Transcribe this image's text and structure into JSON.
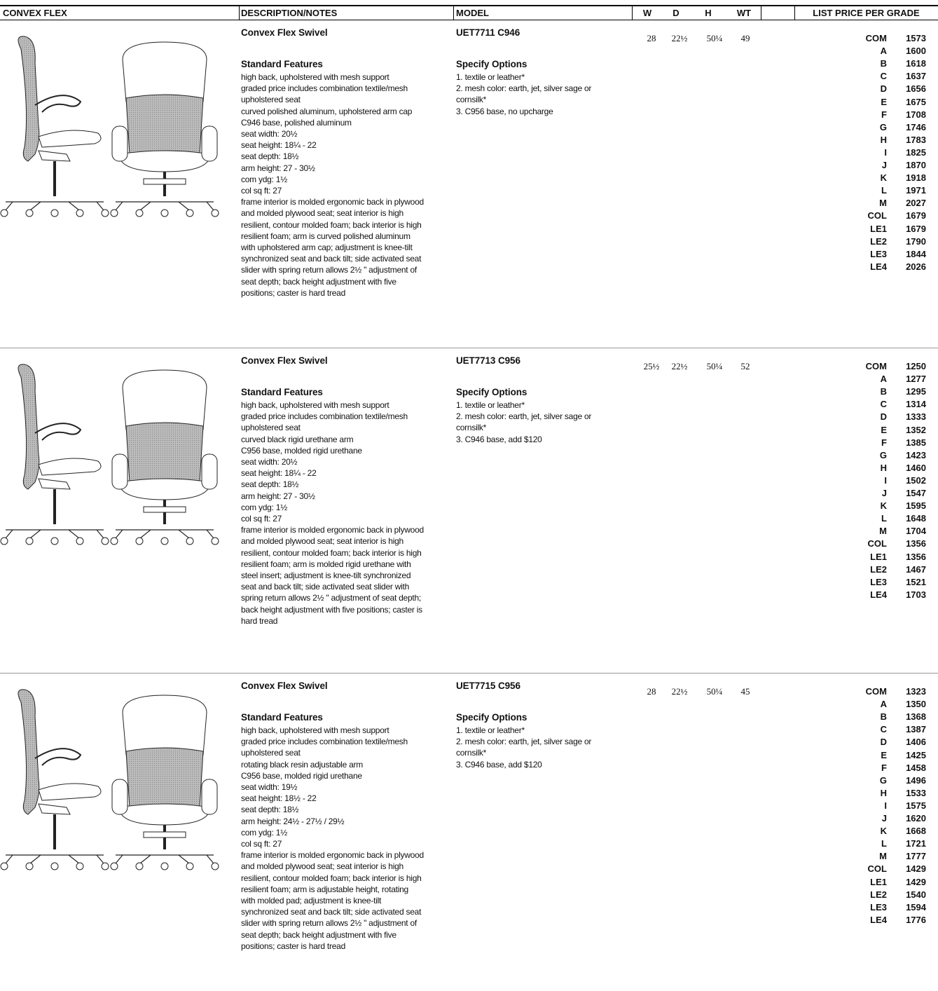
{
  "header": {
    "columns": [
      "CONVEX FLEX",
      "DESCRIPTION/NOTES",
      "MODEL",
      "W",
      "D",
      "H",
      "WT",
      "LIST PRICE PER GRADE"
    ]
  },
  "grades": [
    "COM",
    "A",
    "B",
    "C",
    "D",
    "E",
    "F",
    "G",
    "H",
    "I",
    "J",
    "K",
    "L",
    "M",
    "COL",
    "LE1",
    "LE2",
    "LE3",
    "LE4"
  ],
  "products": [
    {
      "name": "Convex Flex Swivel",
      "features_title": "Standard Features",
      "features": [
        "high back, upholstered with mesh support",
        "graded price includes combination textile/mesh",
        "upholstered seat",
        "curved polished aluminum, upholstered arm cap",
        "C946 base, polished aluminum",
        "seat width: 20½",
        "seat height: 18¼  - 22",
        "seat depth: 18½",
        "arm height: 27 - 30½",
        "com ydg: 1½",
        "col sq ft: 27",
        "frame interior is molded ergonomic back in plywood",
        "and molded plywood seat; seat interior is high",
        "resilient, contour molded foam; back interior is high",
        "resilient foam; arm is curved polished aluminum",
        "with upholstered arm cap; adjustment is knee-tilt",
        "synchronized seat and back tilt; side activated seat",
        "slider with spring return allows 2½ \" adjustment of",
        "seat depth; back height adjustment with five",
        "positions; caster is hard tread"
      ],
      "model": "UET7711 C946",
      "options_title": "Specify Options",
      "options": [
        "1. textile or leather*",
        "2. mesh color: earth, jet, silver sage or",
        "cornsilk*",
        "3. C956 base, no upcharge"
      ],
      "w": "28",
      "d": "22½",
      "h": "50¼",
      "wt": "49",
      "prices": [
        1573,
        1600,
        1618,
        1637,
        1656,
        1675,
        1708,
        1746,
        1783,
        1825,
        1870,
        1918,
        1971,
        2027,
        1679,
        1679,
        1790,
        1844,
        2026
      ]
    },
    {
      "name": "Convex Flex Swivel",
      "features_title": "Standard Features",
      "features": [
        "high back, upholstered with mesh support",
        "graded price includes combination textile/mesh",
        "upholstered seat",
        "curved black rigid urethane arm",
        "C956 base, molded rigid urethane",
        "seat width: 20½",
        "seat height: 18¼  - 22",
        "seat depth: 18½",
        "arm height: 27 - 30½",
        "com ydg: 1½",
        "col sq ft: 27",
        "frame interior is molded ergonomic back in plywood",
        "and molded plywood seat; seat interior is high",
        "resilient, contour molded foam; back interior is high",
        "resilient foam; arm is molded rigid urethane with",
        "steel insert; adjustment is knee-tilt synchronized",
        "seat and back tilt; side activated seat slider with",
        "spring return allows 2½ \" adjustment of seat depth;",
        "back height adjustment with five positions; caster is",
        "hard tread"
      ],
      "model": "UET7713 C956",
      "options_title": "Specify Options",
      "options": [
        "1. textile or leather*",
        "2. mesh color: earth, jet, silver sage or",
        "cornsilk*",
        "3. C946 base, add $120"
      ],
      "w": "25½",
      "d": "22½",
      "h": "50¼",
      "wt": "52",
      "prices": [
        1250,
        1277,
        1295,
        1314,
        1333,
        1352,
        1385,
        1423,
        1460,
        1502,
        1547,
        1595,
        1648,
        1704,
        1356,
        1356,
        1467,
        1521,
        1703
      ]
    },
    {
      "name": "Convex Flex Swivel",
      "features_title": "Standard Features",
      "features": [
        "high back, upholstered with mesh support",
        "graded price includes combination textile/mesh",
        "upholstered seat",
        "rotating black resin adjustable arm",
        "C956 base, molded rigid urethane",
        "seat width: 19½",
        "seat height: 18½  - 22",
        "seat depth: 18½",
        "arm height: 24½ - 27½ / 29½",
        "com ydg: 1½",
        "col sq ft: 27",
        "frame interior is molded ergonomic back in plywood",
        "and molded plywood seat; seat interior is high",
        "resilient, contour molded foam; back interior is high",
        "resilient foam; arm is adjustable height, rotating",
        "with molded pad; adjustment is knee-tilt",
        "synchronized seat and back tilt; side activated seat",
        "slider with spring return allows 2½ \" adjustment of",
        "seat depth; back height adjustment with five",
        "positions; caster is hard tread"
      ],
      "model": "UET7715 C956",
      "options_title": "Specify Options",
      "options": [
        "1. textile or leather*",
        "2. mesh color: earth, jet, silver sage or",
        "cornsilk*",
        "3. C946 base, add $120"
      ],
      "w": "28",
      "d": "22½",
      "h": "50¼",
      "wt": "45",
      "prices": [
        1323,
        1350,
        1368,
        1387,
        1406,
        1425,
        1458,
        1496,
        1533,
        1575,
        1620,
        1668,
        1721,
        1777,
        1429,
        1429,
        1540,
        1594,
        1776
      ]
    }
  ]
}
